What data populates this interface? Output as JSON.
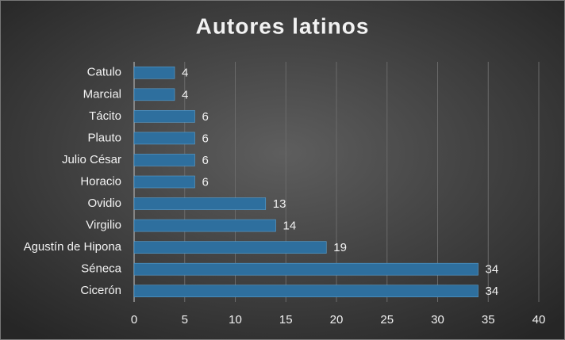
{
  "chart_data": {
    "type": "barh",
    "title": "Autores latinos",
    "categories": [
      "Catulo",
      "Marcial",
      "Tácito",
      "Plauto",
      "Julio César",
      "Horacio",
      "Ovidio",
      "Virgilio",
      "Agustín de Hipona",
      "Séneca",
      "Cicerón"
    ],
    "values": [
      4,
      4,
      6,
      6,
      6,
      6,
      13,
      14,
      19,
      34,
      34
    ],
    "color": "#2e6f9e",
    "xlim": [
      0,
      40
    ],
    "xticks": [
      0,
      5,
      10,
      15,
      20,
      25,
      30,
      35,
      40
    ],
    "grid": true
  }
}
